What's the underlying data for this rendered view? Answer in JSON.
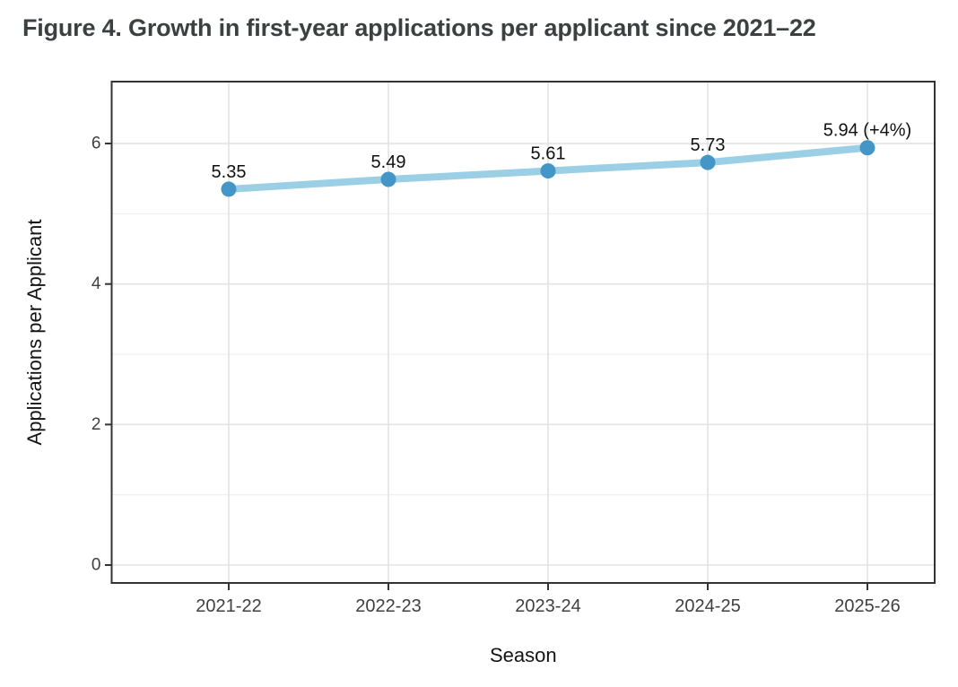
{
  "title": "Figure 4. Growth in first-year applications per applicant since 2021–22",
  "chart_data": {
    "type": "line",
    "categories": [
      "2021-22",
      "2022-23",
      "2023-24",
      "2024-25",
      "2025-26"
    ],
    "values": [
      5.35,
      5.49,
      5.61,
      5.73,
      5.94
    ],
    "point_labels": [
      "5.35",
      "5.49",
      "5.61",
      "5.73",
      "5.94 (+4%)"
    ],
    "title": "Figure 4. Growth in first-year applications per applicant since 2021–22",
    "xlabel": "Season",
    "ylabel": "Applications per Applicant",
    "ylim": [
      -0.26,
      6.88
    ],
    "yticks": [
      0,
      2,
      4,
      6
    ],
    "minor_yticks": [
      1,
      3,
      5
    ],
    "grid": true,
    "legend": "none",
    "colors": {
      "line": "#9bcfe6",
      "point": "#4496c6",
      "grid_major": "#e3e3e3",
      "grid_minor": "#f0f0f0",
      "panel_border": "#333333",
      "tick_mark": "#333333",
      "tick_text": "#404040",
      "data_label_text": "#111111",
      "axis_title_text": "#141414",
      "figure_title_text": "#3c4043",
      "background": "#ffffff"
    }
  }
}
